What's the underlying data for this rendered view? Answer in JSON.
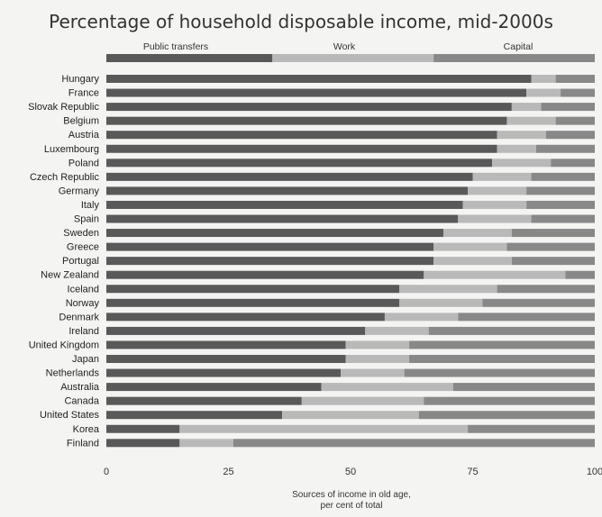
{
  "title": "Percentage of household disposable income, mid-2000s",
  "xlabel_line1": "Sources of income in old age,",
  "xlabel_line2": "per cent of total",
  "colors": {
    "public_transfers": "#595959",
    "work": "#b9b9b9",
    "capital": "#888888"
  },
  "chart_data": {
    "type": "bar",
    "stacked": true,
    "orientation": "horizontal",
    "title": "Percentage of household disposable income, mid-2000s",
    "xlabel": "Sources of income in old age, per cent of total",
    "xlim": [
      0,
      100
    ],
    "xticks": [
      0,
      25,
      50,
      75,
      100
    ],
    "legend": {
      "placement": "top",
      "entries": [
        "Public transfers",
        "Work",
        "Capital"
      ],
      "legend_bar_values": [
        34,
        33,
        33
      ]
    },
    "categories": [
      "Hungary",
      "France",
      "Slovak Republic",
      "Belgium",
      "Austria",
      "Luxembourg",
      "Poland",
      "Czech Republic",
      "Germany",
      "Italy",
      "Spain",
      "Sweden",
      "Greece",
      "Portugal",
      "New Zealand",
      "Iceland",
      "Norway",
      "Denmark",
      "Ireland",
      "United Kingdom",
      "Japan",
      "Netherlands",
      "Australia",
      "Canada",
      "United States",
      "Korea",
      "Finland"
    ],
    "series": [
      {
        "name": "Public transfers",
        "values": [
          87,
          86,
          83,
          82,
          80,
          80,
          79,
          75,
          74,
          73,
          72,
          69,
          67,
          67,
          65,
          60,
          60,
          57,
          53,
          49,
          49,
          48,
          44,
          40,
          36,
          15,
          15
        ]
      },
      {
        "name": "Work",
        "values": [
          5,
          7,
          6,
          10,
          10,
          8,
          12,
          12,
          12,
          13,
          15,
          14,
          15,
          16,
          29,
          20,
          17,
          15,
          13,
          13,
          13,
          13,
          27,
          25,
          28,
          59,
          11
        ]
      },
      {
        "name": "Capital",
        "values": [
          8,
          7,
          11,
          8,
          10,
          12,
          9,
          13,
          14,
          14,
          13,
          17,
          18,
          17,
          6,
          20,
          23,
          28,
          34,
          38,
          38,
          39,
          29,
          35,
          36,
          26,
          74
        ]
      }
    ]
  }
}
